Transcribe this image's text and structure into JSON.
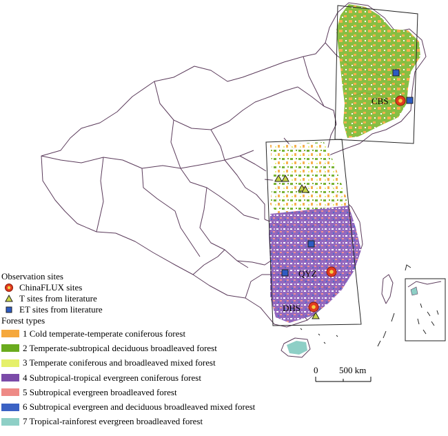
{
  "site_labels": {
    "cbs": "CBS",
    "qyz": "QYZ",
    "dhs": "DHS"
  },
  "legend": {
    "sites_title": "Observation sites",
    "sites": [
      {
        "symbol": "chinaflux-site-icon",
        "label": "ChinaFLUX sites"
      },
      {
        "symbol": "t-site-triangle-icon",
        "label": "T sites from literature"
      },
      {
        "symbol": "et-site-square-icon",
        "label": "ET sites from literature"
      }
    ],
    "forest_title": "Forest types",
    "forest_types": [
      {
        "label": "1 Cold temperate-temperate coniferous forest",
        "color": "#f5a83c"
      },
      {
        "label": "2 Temperate-subtropical deciduous broadleaved forest",
        "color": "#6aab1e"
      },
      {
        "label": "3 Temperate coniferous and broadleaved mixed forest",
        "color": "#e5f06a"
      },
      {
        "label": "4 Subtropical-tropical evergreen coniferous forest",
        "color": "#7b4ba8"
      },
      {
        "label": "5 Subtropical evergreen broadleaved forest",
        "color": "#ee8a86"
      },
      {
        "label": "6 Subtropical evergreen and deciduous broadleaved mixed forest",
        "color": "#3b62c4"
      },
      {
        "label": "7 Tropical-rainforest evergreen broadleaved forest",
        "color": "#8ecfc6"
      }
    ]
  },
  "scale_bar": {
    "zero": "0",
    "distance": "500 km"
  },
  "colors": {
    "boundary": "#5a3a5a",
    "chinaflux_fill": "#e23b1f",
    "chinaflux_center": "#f2d046",
    "t_site_fill": "#c9d64a",
    "et_site_fill": "#2d5bc2"
  }
}
